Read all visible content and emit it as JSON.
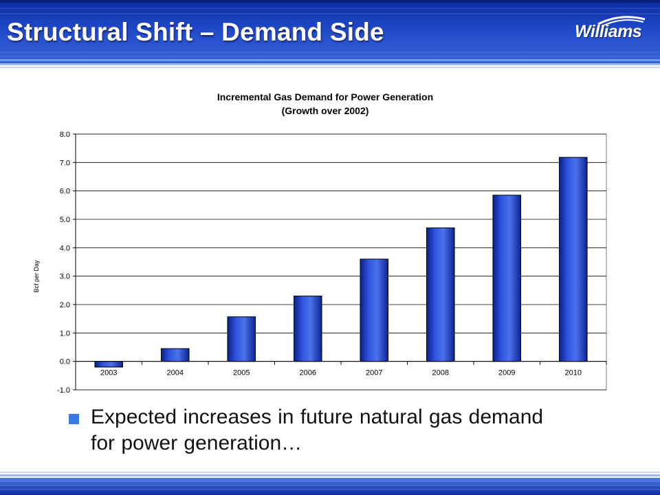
{
  "slide": {
    "title": "Structural Shift – Demand Side",
    "logo_text": "Williams",
    "bullet_text": "Expected increases in future natural gas demand for power generation…"
  },
  "colors": {
    "header_blue": "#1a3fc0",
    "header_light": "#5a86e8",
    "bar_fill": "#2b50d8",
    "bar_dark": "#0a1f8a",
    "bullet": "#3a7ae0"
  },
  "chart_data": {
    "type": "bar",
    "title": "Incremental Gas Demand for Power Generation",
    "subtitle": "(Growth over 2002)",
    "xlabel": "",
    "ylabel": "Bcf per Day",
    "categories": [
      "2003",
      "2004",
      "2005",
      "2006",
      "2007",
      "2008",
      "2009",
      "2010"
    ],
    "values": [
      -0.2,
      0.45,
      1.57,
      2.3,
      3.6,
      4.7,
      5.85,
      7.18
    ],
    "ylim": [
      -1.0,
      8.0
    ],
    "yticks": [
      "8.0",
      "7.0",
      "6.0",
      "5.0",
      "4.0",
      "3.0",
      "2.0",
      "1.0",
      "0.0",
      "-1.0"
    ],
    "grid": true,
    "legend": "none"
  }
}
